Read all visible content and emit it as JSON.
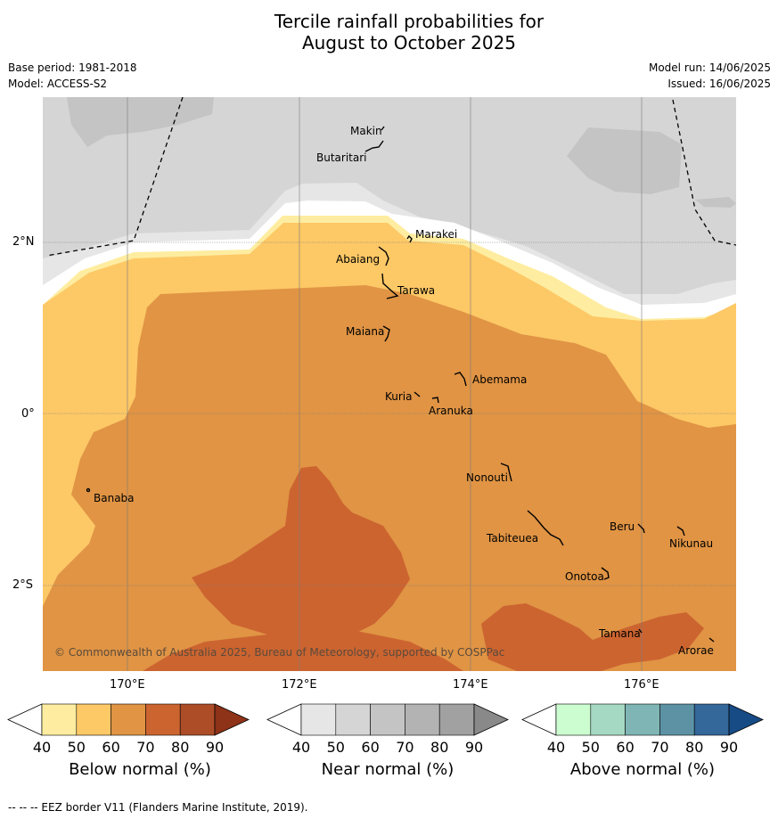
{
  "title_line1": "Tercile rainfall probabilities for",
  "title_line2": "August to October 2025",
  "base_period": "Base period: 1981-2018",
  "model": "Model: ACCESS-S2",
  "model_run": "Model run: 14/06/2025",
  "issued": "Issued: 16/06/2025",
  "copyright": "© Commonwealth of Australia 2025, Bureau of Meteorology, supported by COSPPac",
  "footnote": "-- -- -- EEZ border V11 (Flanders Marine Institute, 2019).",
  "lat_labels": [
    "2°N",
    "0°",
    "2°S"
  ],
  "lon_labels": [
    "170°E",
    "172°E",
    "174°E",
    "176°E"
  ],
  "places": [
    "Makin",
    "Butaritari",
    "Marakei",
    "Abaiang",
    "Tarawa",
    "Maiana",
    "Abemama",
    "Kuria",
    "Aranuka",
    "Banaba",
    "Nonouti",
    "Beru",
    "Tabiteuea",
    "Nikunau",
    "Onotoa",
    "Tamana",
    "Arorae"
  ],
  "colorbars": [
    {
      "label": "Below normal (%)",
      "ticks": [
        "40",
        "50",
        "60",
        "70",
        "80",
        "90"
      ],
      "colors": [
        "#ffffff",
        "#feeda0",
        "#fdc866",
        "#e09444",
        "#cc6430",
        "#ad4d28",
        "#8e3218"
      ]
    },
    {
      "label": "Near normal (%)",
      "ticks": [
        "40",
        "50",
        "60",
        "70",
        "80",
        "90"
      ],
      "colors": [
        "#ffffff",
        "#e6e6e6",
        "#d5d5d5",
        "#c4c4c4",
        "#b3b3b3",
        "#a1a1a1",
        "#898989"
      ]
    },
    {
      "label": "Above normal (%)",
      "ticks": [
        "40",
        "50",
        "60",
        "70",
        "80",
        "90"
      ],
      "colors": [
        "#ffffff",
        "#ccfdd0",
        "#a6d9c3",
        "#7fb6b5",
        "#5c92a4",
        "#34679a",
        "#174b85"
      ]
    }
  ]
}
